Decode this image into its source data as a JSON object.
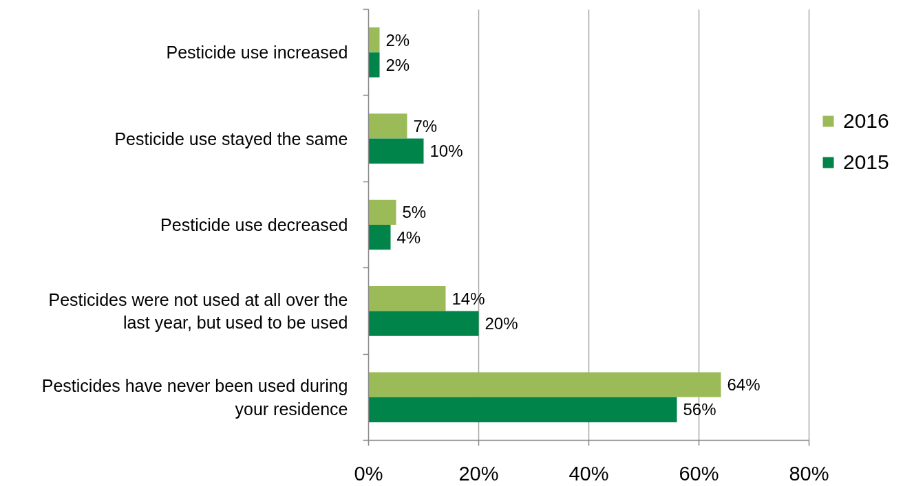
{
  "chart_data": {
    "type": "bar",
    "orientation": "horizontal",
    "categories": [
      "Pesticide use increased",
      "Pesticide use stayed the same",
      "Pesticide use decreased",
      "Pesticides were not used at all over the last year, but used to be used",
      "Pesticides have never been used during your residence"
    ],
    "series": [
      {
        "name": "2016",
        "color": "#9bbb59",
        "values": [
          2,
          7,
          5,
          14,
          64
        ],
        "value_labels": [
          "2%",
          "7%",
          "5%",
          "14%",
          "64%"
        ]
      },
      {
        "name": "2015",
        "color": "#00844a",
        "values": [
          2,
          10,
          4,
          20,
          56
        ],
        "value_labels": [
          "2%",
          "10%",
          "4%",
          "20%",
          "56%"
        ]
      }
    ],
    "xlim": [
      0,
      80
    ],
    "xticks": [
      {
        "value": 0,
        "label": "0%"
      },
      {
        "value": 20,
        "label": "20%"
      },
      {
        "value": 40,
        "label": "40%"
      },
      {
        "value": 60,
        "label": "60%"
      },
      {
        "value": 80,
        "label": "80%"
      }
    ],
    "grid": "x",
    "legend": "right"
  }
}
